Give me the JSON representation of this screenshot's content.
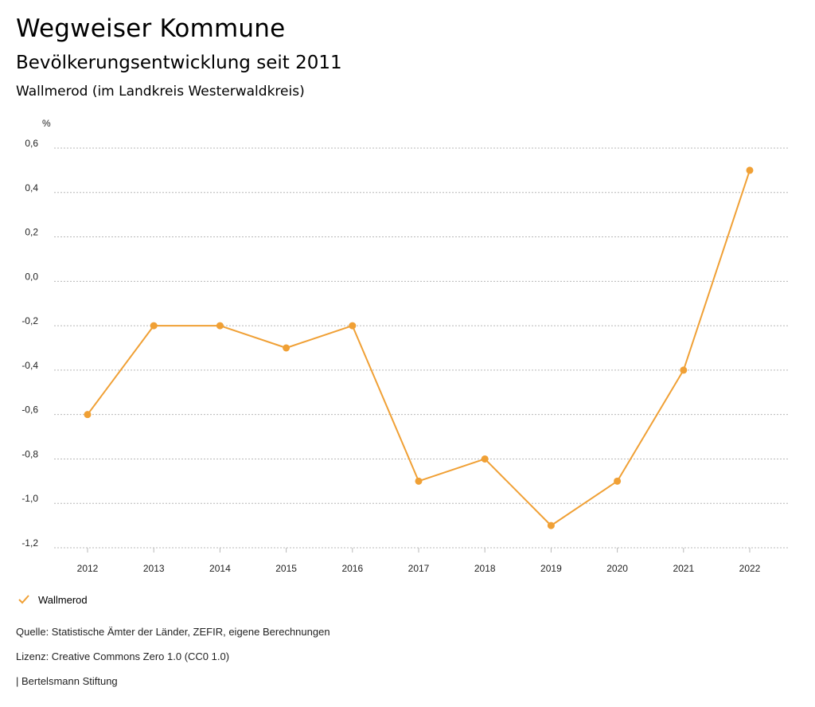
{
  "header": {
    "title": "Wegweiser Kommune",
    "subtitle": "Bevölkerungsentwicklung seit 2011",
    "region": "Wallmerod (im Landkreis Westerwaldkreis)"
  },
  "chart_data": {
    "type": "line",
    "unit": "%",
    "x": [
      "2012",
      "2013",
      "2014",
      "2015",
      "2016",
      "2017",
      "2018",
      "2019",
      "2020",
      "2021",
      "2022"
    ],
    "series": [
      {
        "name": "Wallmerod",
        "color": "#f0a035",
        "values": [
          -0.6,
          -0.2,
          -0.2,
          -0.3,
          -0.2,
          -0.9,
          -0.8,
          -1.1,
          -0.9,
          -0.4,
          0.5
        ]
      }
    ],
    "ylim": [
      -1.2,
      0.6
    ],
    "yticks": [
      "0,6",
      "0,4",
      "0,2",
      "0,0",
      "-0,2",
      "-0,4",
      "-0,6",
      "-0,8",
      "-1,0",
      "-1,2"
    ],
    "ytick_values": [
      0.6,
      0.4,
      0.2,
      0.0,
      -0.2,
      -0.4,
      -0.6,
      -0.8,
      -1.0,
      -1.2
    ],
    "grid": true,
    "legend_position": "bottom-left"
  },
  "legend": {
    "label": "Wallmerod",
    "icon": "check-icon"
  },
  "footer": {
    "source": "Quelle: Statistische Ämter der Länder, ZEFIR, eigene Berechnungen",
    "license": "Lizenz: Creative Commons Zero 1.0 (CC0 1.0)",
    "publisher": "| Bertelsmann Stiftung"
  }
}
